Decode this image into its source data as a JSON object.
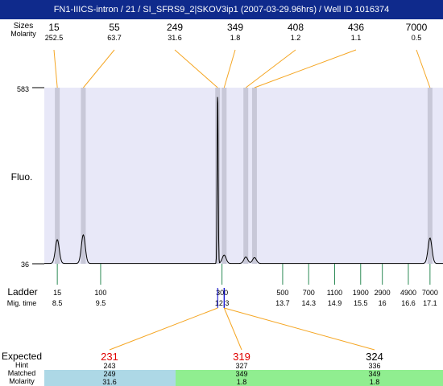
{
  "title": "FN1-IIICS-intron / 21 / SI_SFRS9_2|SKOV3ip1 (2007-03-29.96hrs) / Well ID 1016374",
  "labels": {
    "sizes": "Sizes",
    "molarity": "Molarity",
    "fluo": "Fluo.",
    "ladder": "Ladder",
    "mig_time": "Mig. time",
    "expected": "Expected",
    "hint": "Hint",
    "matched": "Matched",
    "molarity_bottom": "Molarity"
  },
  "chart_data": {
    "type": "line",
    "ylim": [
      36,
      583
    ],
    "ytick_labels": [
      "583",
      "36"
    ],
    "xlim": [
      8.2,
      17.4
    ],
    "peaks": [
      {
        "size": "15",
        "molarity": "252.5",
        "time": 8.5,
        "height": 110
      },
      {
        "size": "55",
        "molarity": "63.7",
        "time": 9.1,
        "height": 125
      },
      {
        "size": "249",
        "molarity": "31.6",
        "time": 12.2,
        "height": 583
      },
      {
        "size": "349",
        "molarity": "1.8",
        "time": 12.35,
        "height": 62
      },
      {
        "size": "408",
        "molarity": "1.2",
        "time": 12.85,
        "height": 56
      },
      {
        "size": "436",
        "molarity": "1.1",
        "time": 13.05,
        "height": 54
      },
      {
        "size": "7000",
        "molarity": "0.5",
        "time": 17.1,
        "height": 115
      }
    ],
    "ladder": [
      {
        "size": "15",
        "time": "8.5",
        "t": 8.5
      },
      {
        "size": "100",
        "time": "9.5",
        "t": 9.5
      },
      {
        "size": "300",
        "time": "12.3",
        "t": 12.3
      },
      {
        "size": "500",
        "time": "13.7",
        "t": 13.7
      },
      {
        "size": "700",
        "time": "14.3",
        "t": 14.3
      },
      {
        "size": "1100",
        "time": "14.9",
        "t": 14.9
      },
      {
        "size": "1900",
        "time": "15.5",
        "t": 15.5
      },
      {
        "size": "2900",
        "time": "16",
        "t": 16.0
      },
      {
        "size": "4900",
        "time": "16.6",
        "t": 16.6
      },
      {
        "size": "7000",
        "time": "17.1",
        "t": 17.1
      }
    ],
    "expected": [
      {
        "expected": "231",
        "hint": "243",
        "matched": "249",
        "molarity": "31.6",
        "color": "#add8e6"
      },
      {
        "expected": "319",
        "hint": "327",
        "matched": "349",
        "molarity": "1.8",
        "color": "#90ee90"
      },
      {
        "expected": "324",
        "hint": "336",
        "matched": "349",
        "molarity": "1.8",
        "color": "#90ee90"
      }
    ]
  }
}
